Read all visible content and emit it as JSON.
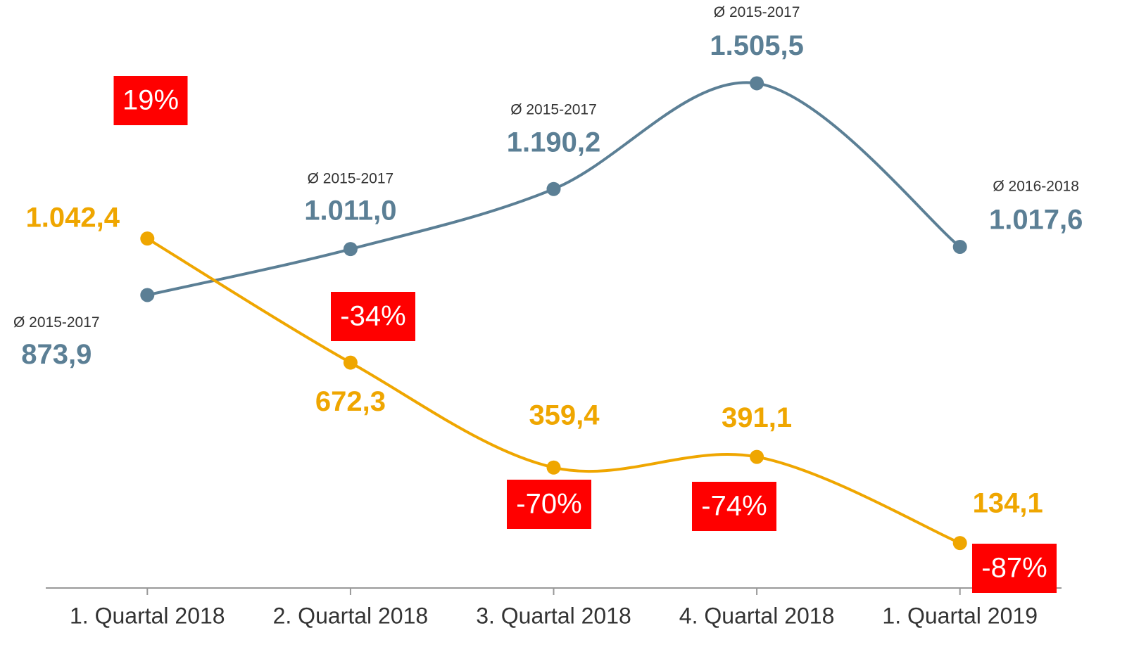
{
  "chart_data": {
    "type": "line",
    "categories": [
      "1. Quartal 2018",
      "2. Quartal 2018",
      "3. Quartal 2018",
      "4. Quartal 2018",
      "1. Quartal 2019"
    ],
    "ylim": [
      0,
      1600
    ],
    "series": [
      {
        "color": "#5b7f95",
        "values": [
          873.9,
          1011.0,
          1190.2,
          1505.5,
          1017.6
        ],
        "value_labels": [
          "873,9",
          "1.011,0",
          "1.190,2",
          "1.505,5",
          "1.017,6"
        ],
        "period_labels": [
          "Ø 2015-2017",
          "Ø 2015-2017",
          "Ø 2015-2017",
          "Ø 2015-2017",
          "Ø 2016-2018"
        ]
      },
      {
        "color": "#efa600",
        "values": [
          1042.4,
          672.3,
          359.4,
          391.1,
          134.1
        ],
        "value_labels": [
          "1.042,4",
          "672,3",
          "359,4",
          "391,1",
          "134,1"
        ]
      }
    ],
    "changes": {
      "color": "#ff0000",
      "values": [
        19,
        -34,
        -70,
        -74,
        -87
      ],
      "value_labels": [
        "19%",
        "-34%",
        "-70%",
        "-74%",
        "-87%"
      ]
    }
  }
}
